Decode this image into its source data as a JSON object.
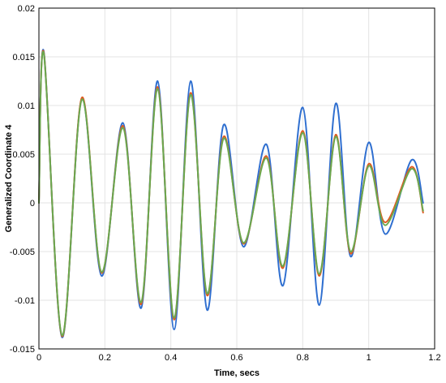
{
  "chart_data": {
    "type": "line",
    "xlabel": "Time, secs",
    "ylabel": "Generalized Coordinate 4",
    "xlim": [
      0,
      1.2
    ],
    "ylim": [
      -0.015,
      0.02
    ],
    "grid": true,
    "x_ticks": [
      "0",
      "0.2",
      "0.4",
      "0.6",
      "0.8",
      "1",
      "1.2"
    ],
    "y_ticks": [
      "-0.015",
      "-0.01",
      "-0.005",
      "0",
      "0.005",
      "0.01",
      "0.015",
      "0.02"
    ],
    "series": [
      {
        "color": "#2f6fd0",
        "x": [
          0,
          0.015,
          0.07,
          0.13,
          0.19,
          0.255,
          0.31,
          0.36,
          0.41,
          0.46,
          0.51,
          0.56,
          0.62,
          0.69,
          0.74,
          0.8,
          0.85,
          0.9,
          0.945,
          1.0,
          1.05,
          1.13,
          1.165
        ],
        "y": [
          0,
          0.0155,
          -0.0138,
          0.0107,
          -0.0075,
          0.0082,
          -0.0108,
          0.0125,
          -0.013,
          0.0125,
          -0.011,
          0.008,
          -0.0045,
          0.006,
          -0.0085,
          0.0098,
          -0.0105,
          0.0102,
          -0.0055,
          0.0062,
          -0.0032,
          0.0044,
          0
        ]
      },
      {
        "color": "#e05a20",
        "x": [
          0,
          0.015,
          0.07,
          0.13,
          0.19,
          0.255,
          0.31,
          0.36,
          0.41,
          0.46,
          0.51,
          0.56,
          0.62,
          0.69,
          0.74,
          0.8,
          0.85,
          0.9,
          0.945,
          1.0,
          1.05,
          1.13,
          1.165
        ],
        "y": [
          0,
          0.0154,
          -0.0137,
          0.0108,
          -0.0072,
          0.0079,
          -0.0104,
          0.0119,
          -0.012,
          0.0113,
          -0.0095,
          0.0068,
          -0.0042,
          0.0048,
          -0.0067,
          0.0074,
          -0.0075,
          0.007,
          -0.0052,
          0.004,
          -0.002,
          0.0037,
          -0.001
        ]
      },
      {
        "color": "#6aa84f",
        "x": [
          0,
          0.015,
          0.07,
          0.13,
          0.19,
          0.255,
          0.31,
          0.36,
          0.41,
          0.46,
          0.51,
          0.56,
          0.62,
          0.69,
          0.74,
          0.8,
          0.85,
          0.9,
          0.945,
          1.0,
          1.05,
          1.13,
          1.165
        ],
        "y": [
          0,
          0.0153,
          -0.0136,
          0.0106,
          -0.0071,
          0.0077,
          -0.0102,
          0.0117,
          -0.0118,
          0.0111,
          -0.0093,
          0.0066,
          -0.0041,
          0.0046,
          -0.0065,
          0.0072,
          -0.0073,
          0.0068,
          -0.005,
          0.0038,
          -0.0023,
          0.0035,
          -0.0008
        ]
      }
    ]
  }
}
